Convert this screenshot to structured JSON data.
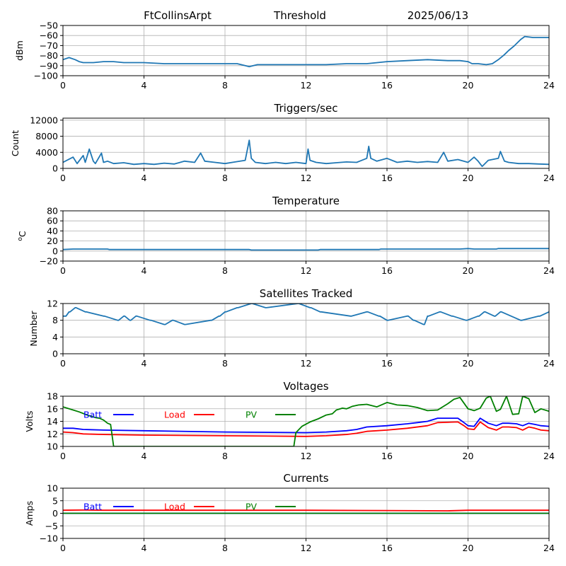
{
  "header": {
    "station": "FtCollinsArpt",
    "mode": "Threshold",
    "date": "2025/06/13"
  },
  "chart_data": [
    {
      "type": "line",
      "title": "",
      "ylabel": "dBm",
      "xlim": [
        0,
        24
      ],
      "ylim": [
        -100,
        -50
      ],
      "xticks": [
        "0",
        "4",
        "8",
        "12",
        "16",
        "20",
        "24"
      ],
      "yticks": [
        "-100",
        "-90",
        "-80",
        "-70",
        "-60",
        "-50"
      ],
      "grid": true,
      "series": [
        {
          "color": "#1f77b4",
          "x": [
            0,
            0.3,
            0.6,
            0.8,
            1.0,
            1.5,
            2.0,
            2.5,
            3.0,
            4.0,
            5.0,
            6.0,
            7.0,
            8.0,
            8.6,
            8.8,
            9.0,
            9.2,
            9.4,
            9.6,
            10.0,
            11.0,
            12.0,
            13.0,
            14.0,
            15.0,
            16.0,
            17.0,
            18.0,
            19.0,
            19.6,
            20.0,
            20.2,
            20.5,
            20.9,
            21.2,
            21.5,
            21.8,
            22.0,
            22.3,
            22.6,
            22.8,
            23.2,
            24.0
          ],
          "y": [
            -84,
            -82,
            -84,
            -86,
            -87,
            -87,
            -86,
            -86,
            -87,
            -87,
            -88,
            -88,
            -88,
            -88,
            -88,
            -89,
            -90,
            -91,
            -90,
            -89,
            -89,
            -89,
            -89,
            -89,
            -88,
            -88,
            -86,
            -85,
            -84,
            -85,
            -85,
            -86,
            -88,
            -88,
            -89,
            -88,
            -84,
            -79,
            -75,
            -70,
            -64,
            -61,
            -62,
            -62
          ]
        }
      ]
    },
    {
      "type": "line",
      "title": "Triggers/sec",
      "ylabel": "Count",
      "xlim": [
        0,
        24
      ],
      "ylim": [
        0,
        12500
      ],
      "xticks": [
        "0",
        "4",
        "8",
        "12",
        "16",
        "20",
        "24"
      ],
      "yticks": [
        "0",
        "4000",
        "8000",
        "12000"
      ],
      "grid": true,
      "series": [
        {
          "color": "#1f77b4",
          "x": [
            0,
            0.5,
            0.7,
            1.0,
            1.1,
            1.3,
            1.5,
            1.6,
            1.9,
            2.0,
            2.2,
            2.5,
            3.0,
            3.5,
            4.0,
            4.5,
            5.0,
            5.5,
            6.0,
            6.5,
            6.8,
            7.0,
            7.5,
            8.0,
            8.5,
            9.0,
            9.2,
            9.3,
            9.5,
            10.0,
            10.5,
            11.0,
            11.5,
            12.0,
            12.1,
            12.2,
            12.5,
            13.0,
            13.5,
            14.0,
            14.5,
            15.0,
            15.1,
            15.2,
            15.5,
            16.0,
            16.5,
            17.0,
            17.5,
            18.0,
            18.5,
            18.8,
            19.0,
            19.5,
            20.0,
            20.3,
            20.5,
            20.7,
            21.0,
            21.5,
            21.6,
            21.8,
            22.0,
            22.5,
            23.0,
            23.5,
            24.0
          ],
          "y": [
            1500,
            2800,
            1200,
            3200,
            1500,
            4800,
            1800,
            1200,
            3800,
            1500,
            1800,
            1200,
            1400,
            1000,
            1200,
            1000,
            1300,
            1100,
            1800,
            1500,
            3800,
            1800,
            1500,
            1200,
            1600,
            2000,
            7000,
            2500,
            1500,
            1200,
            1500,
            1200,
            1500,
            1200,
            4800,
            2000,
            1500,
            1200,
            1400,
            1600,
            1500,
            2500,
            5500,
            2500,
            1800,
            2500,
            1500,
            1800,
            1500,
            1700,
            1500,
            4000,
            1800,
            2200,
            1500,
            2800,
            1800,
            500,
            2000,
            2500,
            4200,
            1800,
            1500,
            1200,
            1200,
            1100,
            1000
          ]
        }
      ]
    },
    {
      "type": "line",
      "title": "Temperature",
      "ylabel": "oC",
      "xlim": [
        0,
        24
      ],
      "ylim": [
        -20,
        80
      ],
      "xticks": [
        "0",
        "4",
        "8",
        "12",
        "16",
        "20",
        "24"
      ],
      "yticks": [
        "-20",
        "0",
        "20",
        "40",
        "60",
        "80"
      ],
      "grid": true,
      "series": [
        {
          "color": "#1f77b4",
          "x": [
            0,
            0.5,
            2.2,
            2.3,
            9.2,
            9.3,
            12.6,
            12.7,
            15.6,
            15.7,
            19.6,
            20.0,
            20.3,
            21.4,
            21.5,
            24.0
          ],
          "y": [
            3,
            4,
            4,
            3,
            3,
            2,
            2,
            3,
            3,
            4,
            4,
            5,
            4,
            4,
            5,
            5
          ]
        }
      ]
    },
    {
      "type": "line",
      "title": "Satellites Tracked",
      "ylabel": "Number",
      "xlim": [
        0,
        24
      ],
      "ylim": [
        0,
        12
      ],
      "xticks": [
        "0",
        "4",
        "8",
        "12",
        "16",
        "20",
        "24"
      ],
      "yticks": [
        "0",
        "4",
        "8",
        "12"
      ],
      "grid": true,
      "series": [
        {
          "color": "#1f77b4",
          "x": [
            0,
            0.15,
            0.3,
            0.35,
            0.6,
            0.65,
            1.1,
            1.15,
            2.0,
            2.05,
            2.7,
            2.75,
            3.0,
            3.05,
            3.3,
            3.35,
            3.6,
            3.65,
            4.3,
            4.35,
            5.0,
            5.05,
            5.4,
            5.45,
            6.0,
            6.05,
            7.3,
            7.35,
            7.7,
            7.75,
            8.0,
            8.05,
            8.6,
            8.65,
            9.3,
            9.35,
            10.0,
            10.05,
            11.6,
            11.65,
            12.2,
            12.25,
            12.7,
            12.75,
            14.2,
            14.25,
            15.0,
            15.05,
            15.6,
            15.65,
            16.0,
            16.05,
            17.0,
            17.05,
            17.3,
            17.35,
            17.8,
            17.85,
            18.0,
            18.05,
            18.6,
            18.65,
            19.2,
            19.25,
            19.9,
            19.95,
            20.5,
            20.55,
            20.8,
            20.85,
            21.3,
            21.35,
            21.6,
            21.65,
            22.6,
            22.65,
            23.5,
            23.55,
            24.0
          ],
          "y": [
            9,
            9,
            10,
            10,
            11,
            11,
            10,
            10,
            9,
            9,
            8,
            8,
            9,
            9,
            8,
            8,
            9,
            9,
            8,
            8,
            7,
            7,
            8,
            8,
            7,
            7,
            8,
            8,
            9,
            9,
            10,
            10,
            11,
            11,
            12,
            12,
            11,
            11,
            12,
            12,
            11,
            11,
            10,
            10,
            9,
            9,
            10,
            10,
            9,
            9,
            8,
            8,
            9,
            9,
            8,
            8,
            7,
            7,
            9,
            9,
            10,
            10,
            9,
            9,
            8,
            8,
            9,
            9,
            10,
            10,
            9,
            9,
            10,
            10,
            8,
            8,
            9,
            9,
            10
          ]
        }
      ]
    },
    {
      "type": "line",
      "title": "Voltages",
      "ylabel": "Volts",
      "xlim": [
        0,
        24
      ],
      "ylim": [
        10,
        18
      ],
      "xticks": [
        "0",
        "4",
        "8",
        "12",
        "16",
        "20",
        "24"
      ],
      "yticks": [
        "10",
        "12",
        "14",
        "16",
        "18"
      ],
      "grid": true,
      "legend": "top-left",
      "series": [
        {
          "name": "Batt",
          "color": "#0000ff",
          "x": [
            0,
            0.5,
            1.0,
            2.0,
            4.0,
            8.0,
            12.0,
            13.0,
            14.0,
            14.5,
            15.0,
            16.0,
            17.0,
            17.5,
            18.0,
            18.5,
            19.5,
            19.8,
            20.0,
            20.3,
            20.6,
            21.0,
            21.4,
            21.7,
            22.0,
            22.4,
            22.7,
            23.0,
            23.3,
            23.6,
            24.0
          ],
          "y": [
            12.9,
            12.9,
            12.7,
            12.6,
            12.5,
            12.3,
            12.2,
            12.3,
            12.5,
            12.7,
            13.1,
            13.3,
            13.6,
            13.8,
            14.0,
            14.5,
            14.5,
            13.8,
            13.3,
            13.2,
            14.5,
            13.7,
            13.3,
            13.7,
            13.7,
            13.6,
            13.3,
            13.7,
            13.5,
            13.3,
            13.2
          ]
        },
        {
          "name": "Load",
          "color": "#ff0000",
          "x": [
            0,
            0.5,
            1.0,
            2.0,
            4.0,
            8.0,
            12.0,
            13.0,
            14.0,
            14.5,
            15.0,
            16.0,
            17.0,
            18.0,
            18.5,
            19.5,
            19.8,
            20.0,
            20.3,
            20.6,
            21.0,
            21.4,
            21.7,
            22.0,
            22.4,
            22.7,
            23.0,
            23.3,
            23.6,
            24.0
          ],
          "y": [
            12.3,
            12.2,
            12.0,
            11.9,
            11.8,
            11.7,
            11.6,
            11.7,
            11.9,
            12.1,
            12.4,
            12.6,
            12.9,
            13.3,
            13.8,
            13.9,
            13.3,
            12.8,
            12.7,
            13.9,
            13.0,
            12.6,
            13.1,
            13.1,
            13.0,
            12.6,
            13.1,
            12.9,
            12.6,
            12.5
          ]
        },
        {
          "name": "PV",
          "color": "#008000",
          "x": [
            0,
            0.4,
            0.8,
            1.2,
            1.6,
            1.8,
            2.0,
            2.2,
            2.35,
            2.5,
            11.4,
            11.5,
            11.8,
            12.2,
            12.6,
            13.0,
            13.3,
            13.5,
            13.8,
            14.0,
            14.3,
            14.6,
            15.0,
            15.5,
            16.0,
            16.5,
            17.0,
            17.5,
            18.0,
            18.5,
            19.0,
            19.3,
            19.6,
            20.0,
            20.3,
            20.6,
            20.9,
            21.1,
            21.4,
            21.6,
            21.9,
            22.2,
            22.5,
            22.7,
            23.0,
            23.3,
            23.6,
            24.0
          ],
          "y": [
            16.3,
            15.9,
            15.5,
            15.0,
            14.6,
            14.5,
            14.2,
            13.7,
            13.5,
            10.0,
            10.0,
            12.2,
            13.2,
            13.9,
            14.4,
            15.0,
            15.2,
            15.8,
            16.1,
            16.0,
            16.4,
            16.6,
            16.7,
            16.3,
            17.0,
            16.6,
            16.5,
            16.2,
            15.7,
            15.8,
            16.8,
            17.5,
            17.8,
            16.0,
            15.7,
            16.1,
            17.7,
            18.0,
            15.6,
            15.9,
            18.0,
            15.1,
            15.2,
            18.0,
            17.6,
            15.4,
            16.0,
            15.6
          ]
        }
      ]
    },
    {
      "type": "line",
      "title": "Currents",
      "ylabel": "Amps",
      "xlim": [
        0,
        24
      ],
      "ylim": [
        -10,
        10
      ],
      "xticks": [
        "0",
        "4",
        "8",
        "12",
        "16",
        "20",
        "24"
      ],
      "yticks": [
        "-10",
        "-5",
        "0",
        "5",
        "10"
      ],
      "grid": true,
      "legend": "top-left",
      "series": [
        {
          "name": "Batt",
          "color": "#0000ff",
          "x": [
            0,
            24
          ],
          "y": [
            0,
            0
          ]
        },
        {
          "name": "Load",
          "color": "#ff0000",
          "x": [
            0,
            1,
            2,
            4,
            8,
            12,
            16,
            19,
            20,
            24
          ],
          "y": [
            1.2,
            1.3,
            1.2,
            1.2,
            1.2,
            1.2,
            1.1,
            1.0,
            1.2,
            1.2
          ]
        },
        {
          "name": "PV",
          "color": "#008000",
          "x": [
            0,
            24
          ],
          "y": [
            0,
            0
          ]
        }
      ]
    }
  ]
}
